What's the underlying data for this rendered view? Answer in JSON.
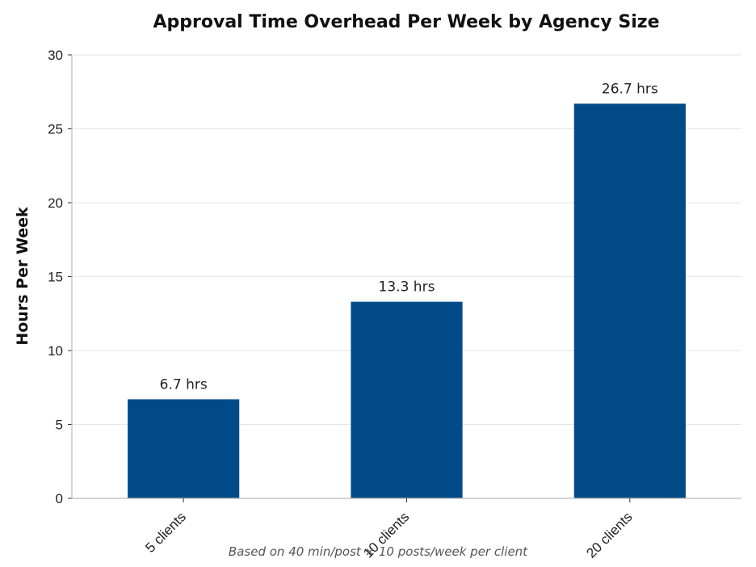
{
  "chart_data": {
    "type": "bar",
    "title": "Approval Time Overhead Per Week by Agency Size",
    "xlabel": "",
    "ylabel": "Hours Per Week",
    "categories": [
      "5 clients",
      "10 clients",
      "20 clients"
    ],
    "values": [
      6.7,
      13.3,
      26.7
    ],
    "data_labels": [
      "6.7 hrs",
      "13.3 hrs",
      "26.7 hrs"
    ],
    "ylim": [
      0,
      30
    ],
    "yticks": [
      0,
      5,
      10,
      15,
      20,
      25,
      30
    ],
    "grid": true,
    "bar_color": "#004b87",
    "note": "Based on 40 min/post × 10 posts/week per client"
  }
}
